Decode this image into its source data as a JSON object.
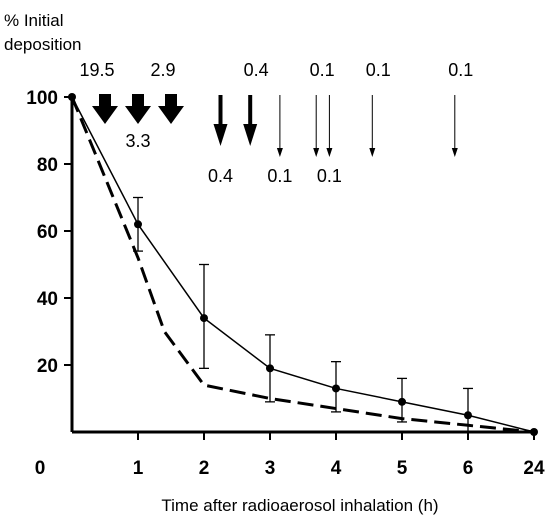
{
  "chart_data": {
    "type": "line",
    "ylabel_line1": "% Initial",
    "ylabel_line2": "deposition",
    "xlabel": "Time after radioaerosol inhalation (h)",
    "x_ticks": [
      "0",
      "1",
      "2",
      "3",
      "4",
      "5",
      "6",
      "24"
    ],
    "y_ticks": [
      "100",
      "80",
      "60",
      "40",
      "20"
    ],
    "ylim": [
      0,
      100
    ],
    "grid": false,
    "series": [
      {
        "style": "solid-with-markers",
        "x": [
          0,
          1,
          2,
          3,
          4,
          5,
          6,
          7
        ],
        "y": [
          100,
          62,
          34,
          19,
          13,
          9,
          5,
          0
        ],
        "error_low": [
          null,
          54,
          19,
          9,
          6,
          3,
          0,
          null
        ],
        "error_high": [
          null,
          70,
          50,
          29,
          21,
          16,
          13,
          null
        ]
      },
      {
        "style": "dashed",
        "x": [
          0,
          1,
          1.4,
          2,
          3,
          4,
          5,
          6,
          7
        ],
        "y": [
          100,
          52,
          30,
          14,
          10,
          7,
          4,
          2,
          0
        ]
      }
    ],
    "arrows": [
      {
        "x": 0.5,
        "weight": "heavy",
        "label": "19.5",
        "label_pos": "above"
      },
      {
        "x": 1.0,
        "weight": "heavy",
        "label": "3.3",
        "label_pos": "below"
      },
      {
        "x": 1.5,
        "weight": "heavy",
        "label": "2.9",
        "label_pos": "above"
      },
      {
        "x": 2.25,
        "weight": "medium",
        "label": "0.4",
        "label_pos": "below"
      },
      {
        "x": 2.7,
        "weight": "medium",
        "label": "0.4",
        "label_pos": "above"
      },
      {
        "x": 3.15,
        "weight": "thin",
        "label": "0.1",
        "label_pos": "below"
      },
      {
        "x": 3.7,
        "weight": "thin",
        "label": "0.1",
        "label_pos": "above"
      },
      {
        "x": 3.9,
        "weight": "thin",
        "label": "0.1",
        "label_pos": "below"
      },
      {
        "x": 4.55,
        "weight": "thin",
        "label": "0.1",
        "label_pos": "above"
      },
      {
        "x": 5.8,
        "weight": "thin",
        "label": "0.1",
        "label_pos": "above"
      }
    ]
  }
}
